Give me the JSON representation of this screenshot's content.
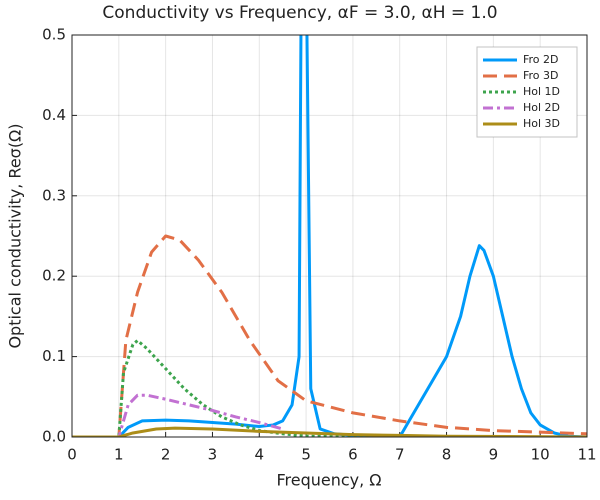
{
  "chart_data": {
    "type": "line",
    "title": "Conductivity vs Frequency, αF = 3.0, αH = 1.0",
    "x_label": "Frequency, Ω",
    "y_label": "Optical conductivity, Reσ(Ω)",
    "xlim": [
      0,
      11
    ],
    "xticks": [
      0,
      1,
      2,
      3,
      4,
      5,
      6,
      7,
      8,
      9,
      10,
      11
    ],
    "ylim": [
      0,
      0.5
    ],
    "yticks": [
      {
        "value": 0,
        "label": "0.0"
      },
      0.1,
      0.2,
      0.3,
      0.4,
      0.5
    ],
    "grid": true,
    "legend": "top-right",
    "series": [
      {
        "name": "Fro 2D",
        "color": "#009af9",
        "line_style": "solid",
        "x": [
          0,
          1,
          1.2,
          1.5,
          2,
          2.5,
          3,
          3.5,
          4,
          4.3,
          4.5,
          4.7,
          4.85,
          4.9,
          5.0,
          5.1,
          5.3,
          5.6,
          6,
          6.5,
          7,
          7.2,
          7.6,
          8.0,
          8.3,
          8.5,
          8.7,
          8.8,
          9.0,
          9.2,
          9.4,
          9.6,
          9.8,
          10.0,
          10.3,
          10.6,
          11
        ],
        "values": [
          0,
          0,
          0.012,
          0.02,
          0.021,
          0.02,
          0.018,
          0.016,
          0.013,
          0.015,
          0.02,
          0.04,
          0.1,
          0.6,
          0.6,
          0.06,
          0.01,
          0.004,
          0.002,
          0.001,
          0,
          0.02,
          0.06,
          0.1,
          0.15,
          0.2,
          0.238,
          0.232,
          0.2,
          0.15,
          0.1,
          0.06,
          0.03,
          0.015,
          0.005,
          0.001,
          0
        ]
      },
      {
        "name": "Fro 3D",
        "color": "#e26f46",
        "line_style": "dash",
        "x": [
          0,
          1,
          1.15,
          1.4,
          1.7,
          2.0,
          2.3,
          2.7,
          3.2,
          3.8,
          4.4,
          5,
          6,
          7,
          8,
          9,
          10,
          11
        ],
        "values": [
          0,
          0,
          0.12,
          0.18,
          0.23,
          0.25,
          0.245,
          0.22,
          0.18,
          0.12,
          0.07,
          0.045,
          0.03,
          0.02,
          0.012,
          0.008,
          0.006,
          0.004
        ]
      },
      {
        "name": "Hol 1D",
        "color": "#3da44d",
        "line_style": "dot",
        "x": [
          0,
          1,
          1.1,
          1.3,
          1.4,
          1.6,
          2,
          2.4,
          2.8,
          3.2,
          3.6,
          4,
          4.5,
          5,
          6,
          8,
          11
        ],
        "values": [
          0,
          0,
          0.08,
          0.115,
          0.12,
          0.11,
          0.085,
          0.06,
          0.04,
          0.025,
          0.015,
          0.008,
          0.004,
          0.001,
          0,
          0,
          0
        ]
      },
      {
        "name": "Hol 2D",
        "color": "#c271d2",
        "line_style": "dashdot",
        "x": [
          0,
          1,
          1.2,
          1.4,
          1.6,
          2,
          2.5,
          3,
          3.5,
          4,
          4.5
        ],
        "values": [
          0,
          0,
          0.04,
          0.052,
          0.052,
          0.047,
          0.04,
          0.033,
          0.025,
          0.018,
          0.01
        ]
      },
      {
        "name": "Hol 3D",
        "color": "#ac8d18",
        "line_style": "solid",
        "x": [
          0,
          1,
          1.3,
          1.8,
          2.2,
          3,
          4,
          5,
          6,
          7,
          8,
          11
        ],
        "values": [
          0,
          0,
          0.005,
          0.01,
          0.011,
          0.01,
          0.007,
          0.005,
          0.003,
          0.002,
          0.001,
          0
        ]
      }
    ]
  }
}
